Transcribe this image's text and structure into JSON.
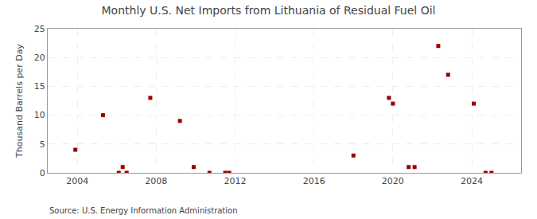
{
  "chart_data": {
    "type": "scatter",
    "title": "Monthly U.S. Net Imports from Lithuania of Residual Fuel Oil",
    "ylabel": "Thousand Barrels per Day",
    "annotations": [
      "Source: U.S. Energy Information Administration"
    ],
    "color": "#990000",
    "marker": "square",
    "grid": true,
    "xlim": [
      2002.5,
      2026.5
    ],
    "ylim": [
      0,
      25
    ],
    "xticks": [
      2004,
      2008,
      2012,
      2016,
      2020,
      2024
    ],
    "yticks": [
      0,
      5,
      10,
      15,
      20,
      25
    ],
    "x": [
      2003.9,
      2005.3,
      2006.1,
      2006.3,
      2006.5,
      2007.7,
      2009.2,
      2009.9,
      2010.7,
      2011.5,
      2011.7,
      2018.0,
      2019.8,
      2020.0,
      2020.8,
      2021.1,
      2022.3,
      2022.8,
      2024.1,
      2024.7,
      2025.0
    ],
    "values": [
      4.0,
      10.0,
      0.0,
      1.0,
      0.0,
      13.0,
      9.0,
      1.0,
      0.0,
      0.0,
      0.0,
      3.0,
      13.0,
      12.0,
      1.0,
      1.0,
      22.0,
      17.0,
      12.0,
      0.0,
      0.0
    ]
  }
}
